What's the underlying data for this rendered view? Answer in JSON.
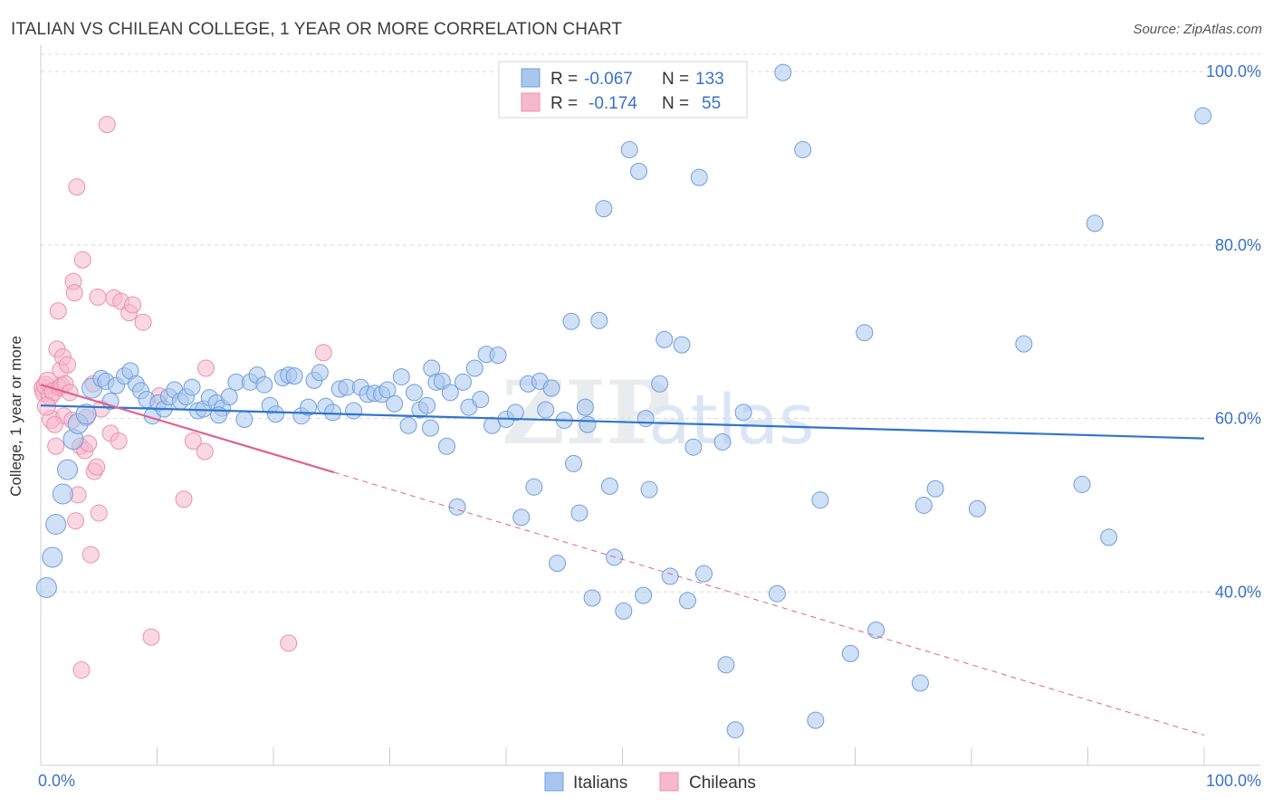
{
  "title": "ITALIAN VS CHILEAN COLLEGE, 1 YEAR OR MORE CORRELATION CHART",
  "source": "Source: ZipAtlas.com",
  "watermark": {
    "zip": "ZIP",
    "atlas": "atlas"
  },
  "colors": {
    "italians_fill": "#a9c6ee",
    "italians_stroke": "#6f9fdc",
    "italians_line": "#2f74d0",
    "chileans_fill": "#f6b8cc",
    "chileans_stroke": "#ec8fae",
    "chileans_line": "#e0608e",
    "tick_label": "#3a72c8",
    "grid": "#d8d8d8"
  },
  "legend": {
    "rows": [
      {
        "r_label": "R =",
        "r_value": "-0.067",
        "n_label": "N =",
        "n_value": "133"
      },
      {
        "r_label": "R =",
        "r_value": "-0.174",
        "n_label": "N =",
        "n_value": "55"
      }
    ]
  },
  "bottom_legend": [
    "Italians",
    "Chileans"
  ],
  "chart_data": {
    "type": "scatter",
    "title": "ITALIAN VS CHILEAN COLLEGE, 1 YEAR OR MORE CORRELATION CHART",
    "xlabel": "",
    "ylabel": "College, 1 year or more",
    "xlim": [
      0,
      100
    ],
    "ylim": [
      20,
      102
    ],
    "x_tick_labels": [
      "0.0%",
      "100.0%"
    ],
    "y_ticks": [
      40,
      60,
      80,
      100
    ],
    "y_tick_labels": [
      "40.0%",
      "60.0%",
      "80.0%",
      "100.0%"
    ],
    "grid": "horizontal dashed",
    "legend_placement": "top-center",
    "series": [
      {
        "name": "Italians",
        "r": -0.067,
        "n": 133,
        "trend": {
          "x": [
            0,
            100
          ],
          "y": [
            61.5,
            57.7
          ]
        },
        "points": [
          [
            0.5,
            40.5
          ],
          [
            1.0,
            44.0
          ],
          [
            1.3,
            47.8
          ],
          [
            1.9,
            51.3
          ],
          [
            2.3,
            54.1
          ],
          [
            2.8,
            57.6
          ],
          [
            3.2,
            59.4
          ],
          [
            3.9,
            60.5
          ],
          [
            4.4,
            63.5
          ],
          [
            5.2,
            64.6
          ],
          [
            5.6,
            64.3
          ],
          [
            6.0,
            62.0
          ],
          [
            6.5,
            63.8
          ],
          [
            7.2,
            64.9
          ],
          [
            7.7,
            65.5
          ],
          [
            8.2,
            64.0
          ],
          [
            8.6,
            63.2
          ],
          [
            9.1,
            62.2
          ],
          [
            9.6,
            60.3
          ],
          [
            10.1,
            61.8
          ],
          [
            10.6,
            61.1
          ],
          [
            11.0,
            62.5
          ],
          [
            11.5,
            63.3
          ],
          [
            12.0,
            62.0
          ],
          [
            12.5,
            62.5
          ],
          [
            13.0,
            63.6
          ],
          [
            13.5,
            60.9
          ],
          [
            14.0,
            61.1
          ],
          [
            14.5,
            62.4
          ],
          [
            15.1,
            61.8
          ],
          [
            15.6,
            61.2
          ],
          [
            16.2,
            62.5
          ],
          [
            16.8,
            64.2
          ],
          [
            17.5,
            59.9
          ],
          [
            18.0,
            64.2
          ],
          [
            18.6,
            65.0
          ],
          [
            19.2,
            63.9
          ],
          [
            19.7,
            61.5
          ],
          [
            20.2,
            60.5
          ],
          [
            20.8,
            64.7
          ],
          [
            21.3,
            65.0
          ],
          [
            21.8,
            64.9
          ],
          [
            22.4,
            60.3
          ],
          [
            23.0,
            61.3
          ],
          [
            23.5,
            64.4
          ],
          [
            24.0,
            65.3
          ],
          [
            24.5,
            61.4
          ],
          [
            25.1,
            60.7
          ],
          [
            25.7,
            63.4
          ],
          [
            26.3,
            63.6
          ],
          [
            26.9,
            60.9
          ],
          [
            27.5,
            63.6
          ],
          [
            28.1,
            62.8
          ],
          [
            28.7,
            62.9
          ],
          [
            29.3,
            62.8
          ],
          [
            29.8,
            63.3
          ],
          [
            30.4,
            61.7
          ],
          [
            31.0,
            64.8
          ],
          [
            31.6,
            59.2
          ],
          [
            32.1,
            63.0
          ],
          [
            32.6,
            61.0
          ],
          [
            33.2,
            61.5
          ],
          [
            33.6,
            65.8
          ],
          [
            34.0,
            64.2
          ],
          [
            34.5,
            64.3
          ],
          [
            34.9,
            56.8
          ],
          [
            35.2,
            63.0
          ],
          [
            35.8,
            49.8
          ],
          [
            36.3,
            64.2
          ],
          [
            36.8,
            61.3
          ],
          [
            37.3,
            65.8
          ],
          [
            37.8,
            62.2
          ],
          [
            38.3,
            67.4
          ],
          [
            38.8,
            59.2
          ],
          [
            39.3,
            67.3
          ],
          [
            40.0,
            59.9
          ],
          [
            40.8,
            60.7
          ],
          [
            41.3,
            48.6
          ],
          [
            41.9,
            64.0
          ],
          [
            42.4,
            52.1
          ],
          [
            42.9,
            64.3
          ],
          [
            43.4,
            61.0
          ],
          [
            43.9,
            63.5
          ],
          [
            44.4,
            43.3
          ],
          [
            45.0,
            59.8
          ],
          [
            45.6,
            71.2
          ],
          [
            45.8,
            54.8
          ],
          [
            46.3,
            49.1
          ],
          [
            46.8,
            61.3
          ],
          [
            47.0,
            59.3
          ],
          [
            47.4,
            39.3
          ],
          [
            48.0,
            71.3
          ],
          [
            48.4,
            84.2
          ],
          [
            48.9,
            52.2
          ],
          [
            49.3,
            44.0
          ],
          [
            50.1,
            37.8
          ],
          [
            50.6,
            91.0
          ],
          [
            51.4,
            88.5
          ],
          [
            51.8,
            39.6
          ],
          [
            52.3,
            51.8
          ],
          [
            53.2,
            64.0
          ],
          [
            53.6,
            69.1
          ],
          [
            54.1,
            41.8
          ],
          [
            54.6,
            97.3
          ],
          [
            55.1,
            68.5
          ],
          [
            55.6,
            39.0
          ],
          [
            56.1,
            56.7
          ],
          [
            56.6,
            87.8
          ],
          [
            57.0,
            42.1
          ],
          [
            58.6,
            57.3
          ],
          [
            58.9,
            31.6
          ],
          [
            59.7,
            24.1
          ],
          [
            60.4,
            60.7
          ],
          [
            63.3,
            39.8
          ],
          [
            63.8,
            99.9
          ],
          [
            65.5,
            91.0
          ],
          [
            66.6,
            25.2
          ],
          [
            67.0,
            50.6
          ],
          [
            69.6,
            32.9
          ],
          [
            70.8,
            69.9
          ],
          [
            71.8,
            35.6
          ],
          [
            75.6,
            29.5
          ],
          [
            75.9,
            50.0
          ],
          [
            76.9,
            51.9
          ],
          [
            80.5,
            49.6
          ],
          [
            84.5,
            68.6
          ],
          [
            89.5,
            52.4
          ],
          [
            90.6,
            82.5
          ],
          [
            91.8,
            46.3
          ],
          [
            99.9,
            94.9
          ],
          [
            52.0,
            60.0
          ],
          [
            33.5,
            58.9
          ],
          [
            15.3,
            60.4
          ]
        ]
      },
      {
        "name": "Chileans",
        "r": -0.174,
        "n": 55,
        "trend": {
          "x": [
            0,
            25.2
          ],
          "y": [
            63.9,
            53.8
          ]
        },
        "trend_extended": {
          "x": [
            25.2,
            100
          ],
          "y": [
            53.8,
            23.5
          ]
        },
        "points": [
          [
            0.2,
            63.5
          ],
          [
            0.3,
            63.0
          ],
          [
            0.4,
            63.8
          ],
          [
            0.6,
            64.3
          ],
          [
            0.8,
            62.6
          ],
          [
            0.9,
            59.9
          ],
          [
            1.1,
            63.1
          ],
          [
            1.3,
            56.8
          ],
          [
            1.4,
            68.0
          ],
          [
            1.5,
            72.4
          ],
          [
            1.6,
            63.6
          ],
          [
            1.7,
            65.6
          ],
          [
            1.8,
            63.8
          ],
          [
            1.9,
            67.1
          ],
          [
            2.0,
            60.3
          ],
          [
            2.1,
            64.0
          ],
          [
            2.3,
            66.2
          ],
          [
            2.5,
            63.0
          ],
          [
            2.7,
            59.8
          ],
          [
            2.8,
            75.8
          ],
          [
            2.9,
            74.5
          ],
          [
            3.0,
            48.2
          ],
          [
            3.1,
            86.7
          ],
          [
            3.2,
            51.2
          ],
          [
            3.4,
            56.8
          ],
          [
            3.5,
            31.0
          ],
          [
            3.6,
            78.3
          ],
          [
            3.8,
            56.3
          ],
          [
            3.9,
            60.1
          ],
          [
            4.1,
            57.1
          ],
          [
            4.3,
            44.3
          ],
          [
            4.5,
            64.0
          ],
          [
            4.6,
            53.9
          ],
          [
            4.8,
            54.4
          ],
          [
            4.9,
            74.0
          ],
          [
            5.0,
            49.1
          ],
          [
            5.2,
            61.1
          ],
          [
            5.7,
            93.9
          ],
          [
            6.0,
            58.3
          ],
          [
            6.3,
            73.9
          ],
          [
            6.7,
            57.4
          ],
          [
            6.9,
            73.5
          ],
          [
            7.6,
            72.2
          ],
          [
            7.9,
            73.1
          ],
          [
            8.8,
            71.1
          ],
          [
            9.5,
            34.8
          ],
          [
            10.2,
            62.6
          ],
          [
            12.3,
            50.7
          ],
          [
            13.1,
            57.4
          ],
          [
            14.1,
            56.2
          ],
          [
            14.2,
            65.8
          ],
          [
            21.3,
            34.1
          ],
          [
            24.3,
            67.6
          ],
          [
            0.5,
            61.4
          ],
          [
            1.2,
            59.3
          ]
        ]
      }
    ]
  }
}
